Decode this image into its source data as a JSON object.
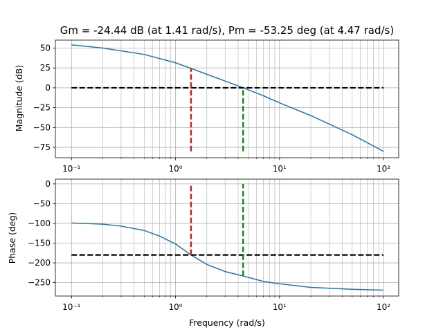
{
  "chart_data": [
    {
      "type": "line",
      "title": "Gm = -24.44 dB (at 1.41 rad/s), Pm = -53.25 deg (at 4.47 rad/s)",
      "xlabel": "",
      "ylabel": "Magnitude (dB)",
      "xscale": "log",
      "xlim": [
        0.07,
        140
      ],
      "ylim": [
        -88,
        60
      ],
      "yticks": [
        50,
        25,
        0,
        -25,
        -50,
        -75
      ],
      "ytick_labels": [
        "50",
        "25",
        "0",
        "−25",
        "−50",
        "−75"
      ],
      "xticks": [
        0.1,
        1,
        10,
        100
      ],
      "xtick_labels": [
        "10⁻¹",
        "10⁰",
        "10¹",
        "10²"
      ],
      "grid": "on (major and minor)",
      "series": [
        {
          "color": "#1f77b4",
          "x": [
            0.1,
            0.2,
            0.5,
            1,
            1.41,
            2,
            3,
            4.47,
            7,
            10,
            20,
            50,
            100
          ],
          "y": [
            54,
            50,
            42,
            31.5,
            24.4,
            17,
            8.5,
            0,
            -10,
            -19,
            -35,
            -59,
            -80
          ]
        }
      ],
      "hlines": [
        {
          "y": 0,
          "x_range": [
            0.1,
            100
          ],
          "color": "#000000",
          "style": "dashed"
        }
      ],
      "vlines": [
        {
          "x": 1.41,
          "y_range": [
            -80,
            24.4
          ],
          "color": "#ff0000",
          "style": "dashed"
        },
        {
          "x": 4.47,
          "y_range": [
            -80,
            0
          ],
          "color": "#008000",
          "style": "dashed"
        }
      ]
    },
    {
      "type": "line",
      "title": "",
      "xlabel": "Frequency (rad/s)",
      "ylabel": "Phase (deg)",
      "xscale": "log",
      "xlim": [
        0.07,
        140
      ],
      "ylim": [
        -284,
        12
      ],
      "yticks": [
        0,
        -50,
        -100,
        -150,
        -200,
        -250
      ],
      "ytick_labels": [
        "0",
        "−50",
        "−100",
        "−150",
        "−200",
        "−250"
      ],
      "xticks": [
        0.1,
        1,
        10,
        100
      ],
      "xtick_labels": [
        "10⁻¹",
        "10⁰",
        "10¹",
        "10²"
      ],
      "grid": "on (major and minor)",
      "series": [
        {
          "color": "#1f77b4",
          "x": [
            0.1,
            0.2,
            0.3,
            0.5,
            0.7,
            1,
            1.41,
            2,
            3,
            4.47,
            7,
            10,
            20,
            50,
            100
          ],
          "y": [
            -99,
            -102,
            -107,
            -118,
            -132,
            -152,
            -180,
            -204,
            -222,
            -233.25,
            -247,
            -253,
            -262,
            -267,
            -269
          ]
        }
      ],
      "hlines": [
        {
          "y": -180,
          "x_range": [
            0.1,
            100
          ],
          "color": "#000000",
          "style": "dashed"
        }
      ],
      "vlines": [
        {
          "x": 1.41,
          "y_range": [
            -180,
            0
          ],
          "color": "#ff0000",
          "style": "dashed"
        },
        {
          "x": 4.47,
          "y_range": [
            -233.25,
            0
          ],
          "color": "#008000",
          "style": "dashed"
        }
      ]
    }
  ]
}
